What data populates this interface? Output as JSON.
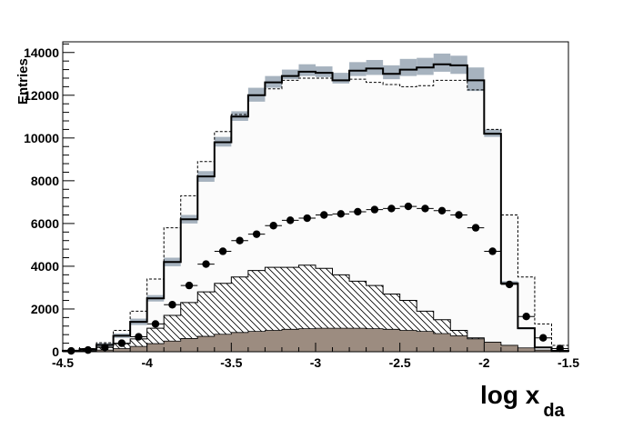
{
  "chart_data": {
    "type": "histogram",
    "ylabel": "Entries",
    "xlabel_main": "log x",
    "xlabel_sub": "da",
    "xlim": [
      -4.5,
      -1.5
    ],
    "ylim": [
      0,
      14500
    ],
    "x_ticks": [
      "-4.5",
      "-4",
      "-3.5",
      "-3",
      "-2.5",
      "-2",
      "-1.5"
    ],
    "y_ticks": [
      "0",
      "2000",
      "4000",
      "6000",
      "8000",
      "10000",
      "12000",
      "14000"
    ],
    "bin_edges": [
      -4.5,
      -4.4,
      -4.3,
      -4.2,
      -4.1,
      -4.0,
      -3.9,
      -3.8,
      -3.7,
      -3.6,
      -3.5,
      -3.4,
      -3.3,
      -3.2,
      -3.1,
      -3.0,
      -2.9,
      -2.8,
      -2.7,
      -2.6,
      -2.5,
      -2.4,
      -2.3,
      -2.2,
      -2.1,
      -2.0,
      -1.9,
      -1.8,
      -1.7,
      -1.6,
      -1.5
    ],
    "series": [
      {
        "style": "solid-step",
        "values": [
          50,
          120,
          320,
          750,
          1400,
          2500,
          4200,
          6200,
          8200,
          9800,
          11000,
          12000,
          12600,
          12900,
          13100,
          13050,
          12700,
          13150,
          13250,
          13000,
          13200,
          13300,
          13450,
          13400,
          12700,
          10200,
          3200,
          1100,
          200,
          40
        ]
      },
      {
        "style": "band",
        "low": [
          30,
          80,
          250,
          650,
          1250,
          2350,
          4000,
          6000,
          7950,
          9600,
          10800,
          11700,
          12350,
          12750,
          12900,
          12850,
          12550,
          12900,
          12950,
          12750,
          12900,
          12950,
          13100,
          13000,
          12200,
          10050,
          3150,
          1050,
          180,
          30
        ],
        "high": [
          70,
          160,
          400,
          850,
          1550,
          2650,
          4400,
          6400,
          8450,
          10050,
          11250,
          12350,
          12900,
          13200,
          13450,
          13350,
          13050,
          13550,
          13650,
          13400,
          13700,
          13750,
          13950,
          13850,
          13300,
          10400,
          3300,
          1150,
          230,
          55
        ]
      },
      {
        "style": "dashed-step",
        "values": [
          40,
          150,
          420,
          1000,
          1900,
          3400,
          5800,
          7300,
          8900,
          10300,
          11100,
          12000,
          12300,
          12700,
          12800,
          12800,
          12700,
          12750,
          12600,
          12500,
          12400,
          12450,
          12700,
          12700,
          12250,
          10400,
          6400,
          3500,
          1300,
          300
        ]
      },
      {
        "style": "points",
        "values": [
          40,
          80,
          200,
          400,
          700,
          1300,
          2200,
          3100,
          4100,
          4700,
          5200,
          5500,
          5900,
          6150,
          6250,
          6400,
          6450,
          6550,
          6650,
          6700,
          6800,
          6700,
          6600,
          6400,
          5800,
          4700,
          3150,
          1650,
          650,
          150
        ]
      },
      {
        "style": "hatched-fill",
        "values": [
          20,
          100,
          220,
          380,
          600,
          1100,
          1700,
          2300,
          2800,
          3200,
          3500,
          3800,
          3950,
          3950,
          4050,
          3900,
          3600,
          3300,
          3100,
          2700,
          2400,
          1900,
          1500,
          1000,
          650,
          350,
          200,
          100,
          40,
          10
        ]
      },
      {
        "style": "gray-fill",
        "values": [
          10,
          40,
          80,
          150,
          250,
          380,
          500,
          620,
          720,
          820,
          900,
          950,
          1000,
          1050,
          1080,
          1100,
          1100,
          1100,
          1080,
          1050,
          1000,
          950,
          850,
          750,
          600,
          450,
          300,
          180,
          80,
          30
        ],
        "color": "#9c8c80"
      }
    ],
    "grid": false,
    "legend": "none"
  }
}
